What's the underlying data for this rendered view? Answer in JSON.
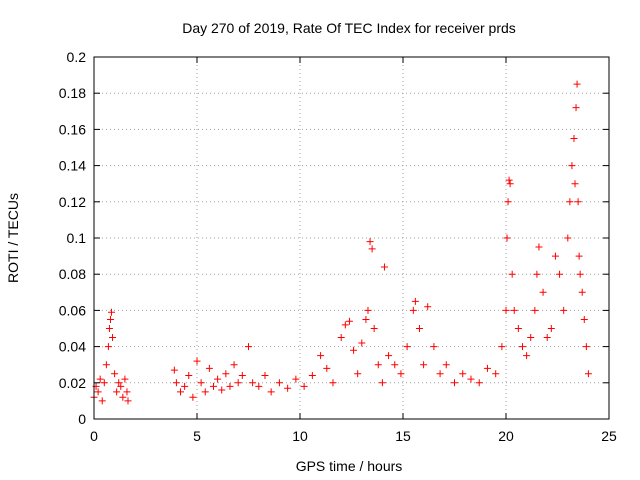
{
  "chart_data": {
    "type": "scatter",
    "title": "Day 270 of 2019, Rate Of TEC Index for receiver prds",
    "xlabel": "GPS time / hours",
    "ylabel": "ROTI / TECUs",
    "xlim": [
      0,
      25
    ],
    "ylim": [
      0,
      0.2
    ],
    "xticks": [
      0,
      5,
      10,
      15,
      20,
      25
    ],
    "xtick_labels": [
      "0",
      "5",
      "10",
      "15",
      "20",
      "25"
    ],
    "yticks": [
      0,
      0.02,
      0.04,
      0.06,
      0.08,
      0.1,
      0.12,
      0.14,
      0.16,
      0.18,
      0.2
    ],
    "ytick_labels": [
      "0",
      "0.02",
      "0.04",
      "0.06",
      "0.08",
      "0.1",
      "0.12",
      "0.14",
      "0.16",
      "0.18",
      "0.2"
    ],
    "grid": true,
    "marker": "+",
    "color": "#ff0000",
    "series": [
      {
        "name": "ROTI",
        "x": [
          0.0,
          0.1,
          0.2,
          0.3,
          0.4,
          0.5,
          0.6,
          0.7,
          0.75,
          0.8,
          0.85,
          0.9,
          1.0,
          1.1,
          1.2,
          1.3,
          1.4,
          1.5,
          1.6,
          1.65,
          3.9,
          4.0,
          4.2,
          4.4,
          4.6,
          4.8,
          5.0,
          5.2,
          5.4,
          5.6,
          5.8,
          6.0,
          6.2,
          6.4,
          6.6,
          6.8,
          7.0,
          7.2,
          7.5,
          7.7,
          8.0,
          8.3,
          8.6,
          9.0,
          9.4,
          9.8,
          10.2,
          10.6,
          11.0,
          11.3,
          11.6,
          12.0,
          12.2,
          12.4,
          12.6,
          12.8,
          13.0,
          13.2,
          13.3,
          13.4,
          13.5,
          13.6,
          13.8,
          14.0,
          14.1,
          14.3,
          14.6,
          14.9,
          15.2,
          15.5,
          15.6,
          15.8,
          16.0,
          16.2,
          16.5,
          16.8,
          17.1,
          17.5,
          17.9,
          18.3,
          18.7,
          19.1,
          19.5,
          19.8,
          20.0,
          20.05,
          20.1,
          20.15,
          20.2,
          20.3,
          20.4,
          20.6,
          20.8,
          21.0,
          21.2,
          21.4,
          21.5,
          21.6,
          21.8,
          22.0,
          22.2,
          22.4,
          22.6,
          22.8,
          23.0,
          23.1,
          23.2,
          23.3,
          23.35,
          23.4,
          23.45,
          23.5,
          23.55,
          23.6,
          23.7,
          23.8,
          23.9,
          24.0
        ],
        "y": [
          0.012,
          0.018,
          0.015,
          0.022,
          0.01,
          0.02,
          0.03,
          0.04,
          0.05,
          0.055,
          0.059,
          0.045,
          0.025,
          0.015,
          0.02,
          0.018,
          0.012,
          0.022,
          0.015,
          0.01,
          0.027,
          0.02,
          0.015,
          0.018,
          0.024,
          0.012,
          0.032,
          0.02,
          0.015,
          0.028,
          0.018,
          0.022,
          0.016,
          0.025,
          0.018,
          0.03,
          0.02,
          0.024,
          0.04,
          0.02,
          0.018,
          0.024,
          0.015,
          0.02,
          0.017,
          0.022,
          0.018,
          0.024,
          0.035,
          0.028,
          0.02,
          0.045,
          0.052,
          0.054,
          0.038,
          0.025,
          0.042,
          0.055,
          0.06,
          0.098,
          0.094,
          0.05,
          0.03,
          0.02,
          0.084,
          0.035,
          0.03,
          0.025,
          0.04,
          0.06,
          0.065,
          0.05,
          0.03,
          0.062,
          0.04,
          0.025,
          0.03,
          0.02,
          0.025,
          0.022,
          0.02,
          0.028,
          0.025,
          0.04,
          0.06,
          0.1,
          0.12,
          0.132,
          0.13,
          0.08,
          0.06,
          0.05,
          0.04,
          0.035,
          0.045,
          0.06,
          0.08,
          0.095,
          0.07,
          0.045,
          0.05,
          0.09,
          0.08,
          0.06,
          0.1,
          0.12,
          0.14,
          0.155,
          0.13,
          0.172,
          0.185,
          0.12,
          0.09,
          0.08,
          0.07,
          0.055,
          0.04,
          0.025
        ]
      }
    ]
  }
}
